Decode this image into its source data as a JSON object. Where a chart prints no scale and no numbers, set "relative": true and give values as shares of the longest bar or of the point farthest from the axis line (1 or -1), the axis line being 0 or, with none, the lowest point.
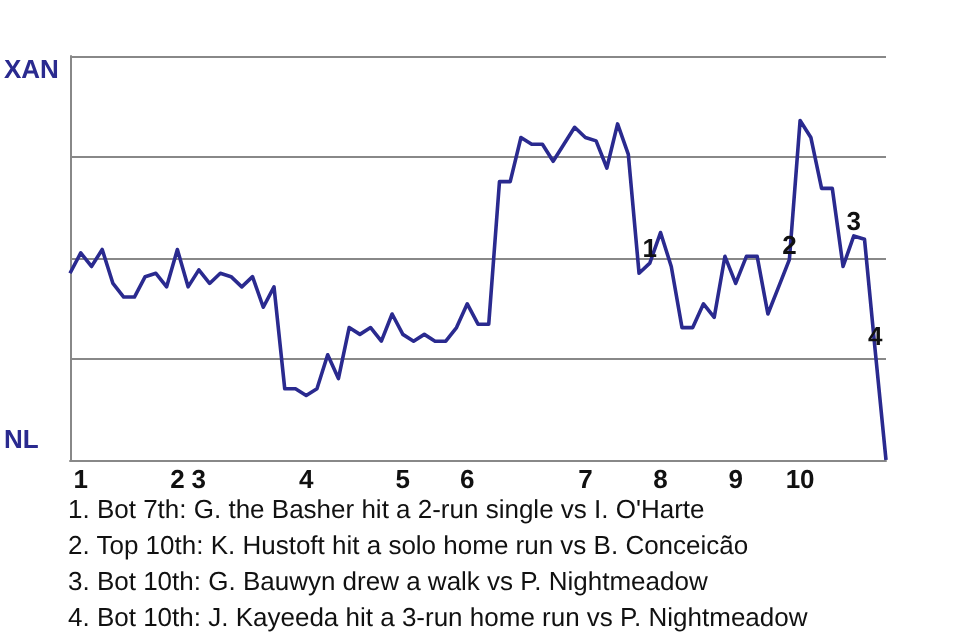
{
  "chart_data": {
    "type": "line",
    "categories": [
      null,
      "1",
      null,
      null,
      null,
      null,
      null,
      null,
      null,
      null,
      "2",
      null,
      "3",
      null,
      null,
      null,
      null,
      null,
      null,
      null,
      null,
      null,
      "4",
      null,
      null,
      null,
      null,
      null,
      null,
      null,
      null,
      "5",
      null,
      null,
      null,
      null,
      null,
      "6",
      null,
      null,
      null,
      null,
      null,
      null,
      null,
      null,
      null,
      null,
      "7",
      null,
      null,
      null,
      null,
      null,
      null,
      "8",
      null,
      null,
      null,
      null,
      null,
      null,
      "9",
      null,
      null,
      null,
      null,
      null,
      "10",
      null,
      null,
      null,
      null,
      null,
      null,
      null,
      null
    ],
    "relative": true,
    "series": [
      {
        "color": "#2a2a8f",
        "values": [
          0.55,
          0.61,
          0.57,
          0.62,
          0.52,
          0.48,
          0.48,
          0.54,
          0.55,
          0.51,
          0.62,
          0.51,
          0.56,
          0.52,
          0.55,
          0.54,
          0.51,
          0.54,
          0.45,
          0.51,
          0.21,
          0.21,
          0.19,
          0.21,
          0.31,
          0.24,
          0.39,
          0.37,
          0.39,
          0.35,
          0.43,
          0.37,
          0.35,
          0.37,
          0.35,
          0.35,
          0.39,
          0.46,
          0.4,
          0.4,
          0.82,
          0.82,
          0.95,
          0.93,
          0.93,
          0.88,
          0.93,
          0.98,
          0.95,
          0.94,
          0.86,
          0.99,
          0.9,
          0.55,
          0.58,
          0.67,
          0.57,
          0.39,
          0.39,
          0.46,
          0.42,
          0.6,
          0.52,
          0.6,
          0.6,
          0.43,
          0.51,
          0.59,
          1,
          0.95,
          0.8,
          0.8,
          0.57,
          0.66,
          0.65,
          0.32,
          0
        ]
      }
    ],
    "grid": "y",
    "marker": "none",
    "annotations": [
      {
        "text": "1",
        "y": 0.58
      },
      {
        "text": "2",
        "y": 0.59
      },
      {
        "text": "3",
        "y": 0.66
      },
      {
        "text": "4",
        "y": 0.32
      },
      "XAN",
      "NL",
      "1. Bot 7th: G. the Basher hit a 2-run single vs I. O'Harte",
      "2. Top 10th: K. Hustoft hit a solo home run vs B. Conceicão",
      "3. Bot 10th: G. Bauwyn drew a walk vs P. Nightmeadow",
      "4. Bot 10th: J. Kayeeda hit a 3-run home run vs P. Nightmeadow"
    ]
  }
}
